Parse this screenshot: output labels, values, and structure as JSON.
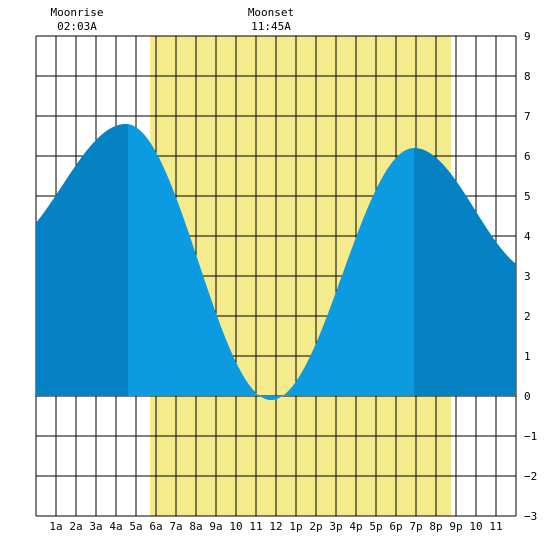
{
  "chart_data": {
    "type": "area",
    "title": "",
    "xlabel": "",
    "ylabel": "",
    "x_unit": "hour of day",
    "xlim": [
      0,
      24
    ],
    "ylim": [
      -3,
      9
    ],
    "grid": true,
    "y_ticks": [
      -3,
      -2,
      -1,
      0,
      1,
      2,
      3,
      4,
      5,
      6,
      7,
      8,
      9
    ],
    "y_tick_labels": [
      "−3",
      "−2",
      "−1",
      "0",
      "1",
      "2",
      "3",
      "4",
      "5",
      "6",
      "7",
      "8",
      "9"
    ],
    "x_ticks": [
      1,
      2,
      3,
      4,
      5,
      6,
      7,
      8,
      9,
      10,
      11,
      12,
      13,
      14,
      15,
      16,
      17,
      18,
      19,
      20,
      21,
      22,
      23
    ],
    "x_tick_labels": [
      "1a",
      "2a",
      "3a",
      "4a",
      "5a",
      "6a",
      "7a",
      "8a",
      "9a",
      "10",
      "11",
      "12",
      "1p",
      "2p",
      "3p",
      "4p",
      "5p",
      "6p",
      "7p",
      "8p",
      "9p",
      "10",
      "11"
    ],
    "daylight": {
      "start": 5.7,
      "end": 20.75
    },
    "moon_events": [
      {
        "label": "Moonrise",
        "time": "02:03A",
        "hour": 2.05
      },
      {
        "label": "Moonset",
        "time": "11:45A",
        "hour": 11.75
      }
    ],
    "tide_extrema": [
      {
        "hour": -1.9,
        "height": 3.7
      },
      {
        "hour": 4.5,
        "height": 6.8
      },
      {
        "hour": 11.75,
        "height": -0.1
      },
      {
        "hour": 18.9,
        "height": 6.2
      },
      {
        "hour": 25.0,
        "height": 3.1
      }
    ],
    "shaded_bands": [
      {
        "from": 0,
        "to": 4.6
      },
      {
        "from": 18.9,
        "to": 24
      }
    ],
    "colors": {
      "tide_fill": "#0c9ae0",
      "tide_fill_dark": "#0482c3",
      "daylight": "#f5eb8c",
      "grid": "#000000"
    }
  }
}
